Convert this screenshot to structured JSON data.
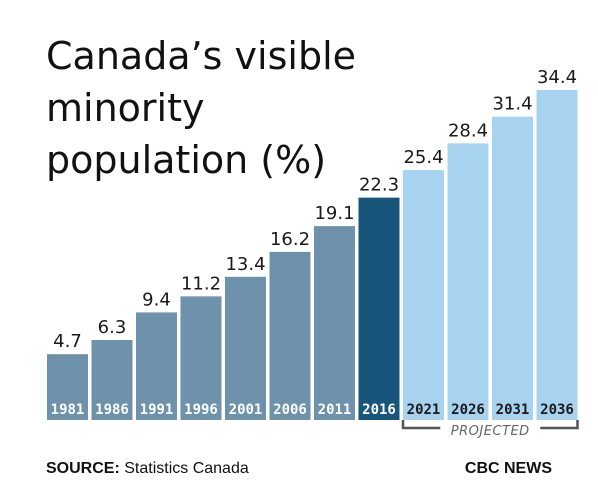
{
  "title": "Canada’s visible minority population (%)",
  "source": {
    "prefix": "SOURCE:",
    "text": "Statistics Canada"
  },
  "brand": "CBC NEWS",
  "projection_label": "PROJECTED",
  "colors": {
    "historical": "#6e92ab",
    "current": "#17557a",
    "projected": "#a8d3f0",
    "label_light": "#ffffff",
    "label_dark": "#1a1a1a",
    "bracket": "#555555"
  },
  "chart_data": {
    "type": "bar",
    "title": "Canada’s visible minority population (%)",
    "categories": [
      "1981",
      "1986",
      "1991",
      "1996",
      "2001",
      "2006",
      "2011",
      "2016",
      "2021",
      "2026",
      "2031",
      "2036"
    ],
    "values": [
      4.7,
      6.3,
      9.4,
      11.2,
      13.4,
      16.2,
      19.1,
      22.3,
      25.4,
      28.4,
      31.4,
      34.4
    ],
    "series": [
      {
        "values": [
          4.7,
          6.3,
          9.4,
          11.2,
          13.4,
          16.2,
          19.1,
          22.3,
          25.4,
          28.4,
          31.4,
          34.4
        ]
      }
    ],
    "highlight_category": "2016",
    "projected_categories": [
      "2021",
      "2026",
      "2031",
      "2036"
    ],
    "xlabel": "",
    "ylabel": "",
    "ylim": [
      0,
      34.4
    ],
    "grid": false,
    "legend": "none"
  }
}
